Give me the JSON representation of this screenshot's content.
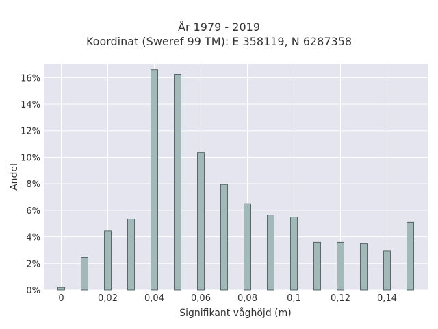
{
  "chart_data": {
    "type": "bar",
    "title": "År 1979 - 2019",
    "subtitle": "Koordinat (Sweref 99 TM): E 358119, N 6287358",
    "xlabel": "Signifikant våghöjd (m)",
    "ylabel": "Andel",
    "x": [
      0,
      0.01,
      0.02,
      0.03,
      0.04,
      0.05,
      0.06,
      0.07,
      0.08,
      0.09,
      0.1,
      0.11,
      0.12,
      0.13,
      0.14,
      0.15
    ],
    "values": [
      0.2,
      2.45,
      4.45,
      5.35,
      16.6,
      16.25,
      10.35,
      7.95,
      6.5,
      5.65,
      5.5,
      3.6,
      3.6,
      3.5,
      2.95,
      5.1
    ],
    "xticks": [
      0,
      0.02,
      0.04,
      0.06,
      0.08,
      0.1,
      0.12,
      0.14
    ],
    "xtick_labels": [
      "0",
      "0,02",
      "0,04",
      "0,06",
      "0,08",
      "0,1",
      "0,12",
      "0,14"
    ],
    "yticks": [
      0,
      2,
      4,
      6,
      8,
      10,
      12,
      14,
      16
    ],
    "ytick_labels": [
      "0%",
      "2%",
      "4%",
      "6%",
      "8%",
      "10%",
      "12%",
      "14%",
      "16%"
    ],
    "xlim": [
      -0.0075,
      0.1575
    ],
    "ylim": [
      0,
      17.05
    ],
    "grid": true,
    "colors": {
      "bar_fill": "#a3b8b9",
      "bar_stroke": "#3d4f50",
      "plot_bg": "#e5e5ef",
      "grid": "#ffffff"
    }
  }
}
